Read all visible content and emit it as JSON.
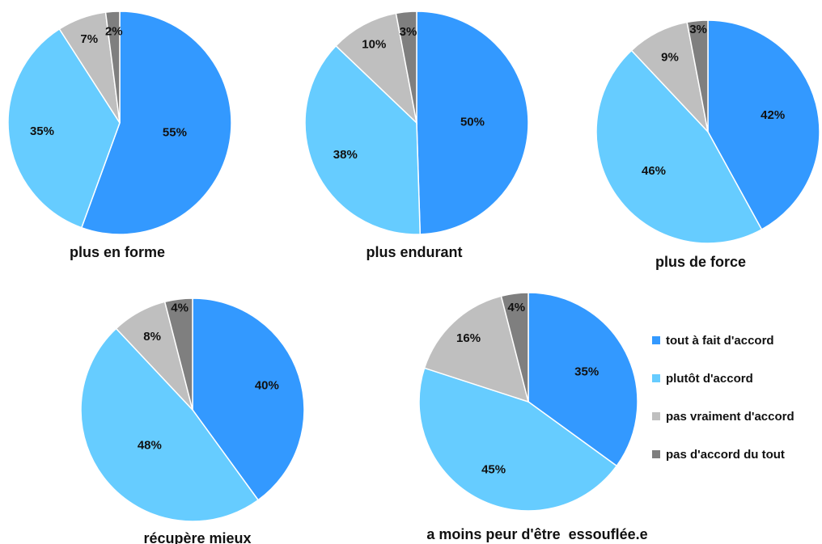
{
  "chart_data": [
    {
      "type": "pie",
      "title": "plus en forme",
      "labels": [
        "tout à fait d'accord",
        "plutôt d'accord",
        "pas vraiment d'accord",
        "pas d'accord du tout"
      ],
      "values": [
        55,
        35,
        7,
        2
      ],
      "value_labels": [
        "55%",
        "35%",
        "7%",
        "2%"
      ]
    },
    {
      "type": "pie",
      "title": "plus endurant",
      "labels": [
        "tout à fait d'accord",
        "plutôt d'accord",
        "pas vraiment d'accord",
        "pas d'accord du tout"
      ],
      "values": [
        50,
        38,
        10,
        3
      ],
      "value_labels": [
        "50%",
        "38%",
        "10%",
        "3%"
      ]
    },
    {
      "type": "pie",
      "title": "plus de force",
      "labels": [
        "tout à fait d'accord",
        "plutôt d'accord",
        "pas vraiment d'accord",
        "pas d'accord du tout"
      ],
      "values": [
        42,
        46,
        9,
        3
      ],
      "value_labels": [
        "42%",
        "46%",
        "9%",
        "3%"
      ]
    },
    {
      "type": "pie",
      "title": "récupère mieux",
      "labels": [
        "tout à fait d'accord",
        "plutôt d'accord",
        "pas vraiment d'accord",
        "pas d'accord du tout"
      ],
      "values": [
        40,
        48,
        8,
        4
      ],
      "value_labels": [
        "40%",
        "48%",
        "8%",
        "4%"
      ]
    },
    {
      "type": "pie",
      "title": "a moins peur d'être  essouflée.e",
      "labels": [
        "tout à fait d'accord",
        "plutôt d'accord",
        "pas vraiment d'accord",
        "pas d'accord du tout"
      ],
      "values": [
        35,
        45,
        16,
        4
      ],
      "value_labels": [
        "35%",
        "45%",
        "16%",
        "4%"
      ]
    }
  ],
  "legend": {
    "placement": "bottom-right",
    "items": [
      {
        "label": "tout à fait d'accord",
        "color": "#3399ff"
      },
      {
        "label": "plutôt d'accord",
        "color": "#66ccff"
      },
      {
        "label": "pas vraiment d'accord",
        "color": "#bfbfbf"
      },
      {
        "label": "pas d'accord du tout",
        "color": "#7f7f7f"
      }
    ]
  },
  "colors": [
    "#3399ff",
    "#66ccff",
    "#bfbfbf",
    "#7f7f7f"
  ]
}
